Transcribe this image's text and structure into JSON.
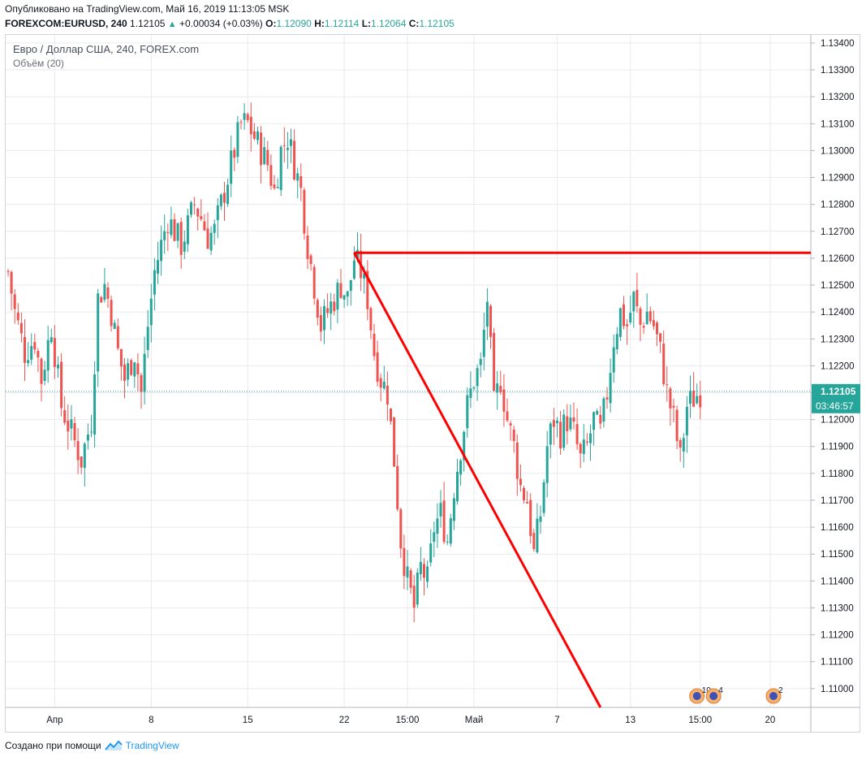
{
  "header": {
    "published": "Опубликовано на TradingView.com, Май 16, 2019 11:13:05 MSK",
    "symbol": "FOREXCOM:EURUSD, 240",
    "price": "1.12105",
    "change": "+0.00034 (+0.03%)",
    "o_label": "O:",
    "o": "1.12090",
    "h_label": "H:",
    "h": "1.12114",
    "l_label": "L:",
    "l": "1.12064",
    "c_label": "C:",
    "c": "1.12105"
  },
  "legend": {
    "title": "Евро / Доллар США, 240, FOREX.com",
    "indicator": "Объём (20)"
  },
  "footer": {
    "created_by": "Создано при помощи",
    "brand": "TradingView"
  },
  "colors": {
    "up": "#26a69a",
    "down": "#ef5350",
    "drawing": "#ff0000",
    "last_price_bg": "#26a69a",
    "grid": "#e9eaee"
  },
  "chart_data": {
    "type": "candlestick",
    "ylim": [
      1.1093,
      1.1343
    ],
    "y_ticks": [
      "1.13400",
      "1.13300",
      "1.13200",
      "1.13100",
      "1.13000",
      "1.12900",
      "1.12800",
      "1.12700",
      "1.12600",
      "1.12500",
      "1.12400",
      "1.12300",
      "1.12200",
      "1.12100",
      "1.12000",
      "1.11900",
      "1.11800",
      "1.11700",
      "1.11600",
      "1.11500",
      "1.11400",
      "1.11300",
      "1.11200",
      "1.11100",
      "1.11000"
    ],
    "x_ticks": [
      {
        "label": "Апр",
        "bar": 14
      },
      {
        "label": "8",
        "bar": 43
      },
      {
        "label": "15",
        "bar": 72
      },
      {
        "label": "22",
        "bar": 101
      },
      {
        "label": "15:00",
        "bar": 120
      },
      {
        "label": "Май",
        "bar": 140
      },
      {
        "label": "7",
        "bar": 165
      },
      {
        "label": "13",
        "bar": 187
      },
      {
        "label": "15:00",
        "bar": 208
      },
      {
        "label": "20",
        "bar": 229
      }
    ],
    "bar_count": 232,
    "last_price": "1.12105",
    "countdown": "03:46:57",
    "last_price_value": 1.12105,
    "drawings": [
      {
        "kind": "horizontal_ray",
        "price": 1.1262,
        "from_bar": 104
      },
      {
        "kind": "trend_line",
        "p1": {
          "bar": 104,
          "price": 1.1262
        },
        "p2": {
          "bar": 178,
          "price": 1.1093
        }
      }
    ],
    "events": [
      {
        "bar": 207,
        "count": "10"
      },
      {
        "bar": 212,
        "count": "4"
      },
      {
        "bar": 230,
        "count": "2"
      }
    ],
    "anchors": [
      [
        0,
        1.1255
      ],
      [
        2,
        1.124
      ],
      [
        5,
        1.1225
      ],
      [
        8,
        1.123
      ],
      [
        10,
        1.1215
      ],
      [
        13,
        1.1235
      ],
      [
        16,
        1.1205
      ],
      [
        19,
        1.1195
      ],
      [
        22,
        1.1185
      ],
      [
        25,
        1.12
      ],
      [
        27,
        1.1245
      ],
      [
        29,
        1.125
      ],
      [
        31,
        1.124
      ],
      [
        33,
        1.1225
      ],
      [
        35,
        1.1215
      ],
      [
        38,
        1.1225
      ],
      [
        40,
        1.121
      ],
      [
        42,
        1.1235
      ],
      [
        44,
        1.1255
      ],
      [
        46,
        1.1265
      ],
      [
        48,
        1.1275
      ],
      [
        50,
        1.127
      ],
      [
        52,
        1.1265
      ],
      [
        54,
        1.1272
      ],
      [
        56,
        1.128
      ],
      [
        58,
        1.1275
      ],
      [
        60,
        1.1268
      ],
      [
        62,
        1.127
      ],
      [
        64,
        1.128
      ],
      [
        66,
        1.129
      ],
      [
        68,
        1.13
      ],
      [
        70,
        1.131
      ],
      [
        72,
        1.131
      ],
      [
        74,
        1.1305
      ],
      [
        76,
        1.13
      ],
      [
        78,
        1.1295
      ],
      [
        80,
        1.1285
      ],
      [
        82,
        1.13
      ],
      [
        84,
        1.1305
      ],
      [
        86,
        1.1295
      ],
      [
        88,
        1.1285
      ],
      [
        90,
        1.1265
      ],
      [
        92,
        1.125
      ],
      [
        94,
        1.1235
      ],
      [
        96,
        1.124
      ],
      [
        98,
        1.1245
      ],
      [
        100,
        1.125
      ],
      [
        102,
        1.1245
      ],
      [
        104,
        1.126
      ],
      [
        106,
        1.1255
      ],
      [
        108,
        1.1245
      ],
      [
        110,
        1.1225
      ],
      [
        112,
        1.1215
      ],
      [
        114,
        1.121
      ],
      [
        116,
        1.1185
      ],
      [
        118,
        1.1155
      ],
      [
        120,
        1.114
      ],
      [
        122,
        1.113
      ],
      [
        124,
        1.1145
      ],
      [
        126,
        1.114
      ],
      [
        128,
        1.116
      ],
      [
        130,
        1.1165
      ],
      [
        132,
        1.1155
      ],
      [
        134,
        1.1175
      ],
      [
        136,
        1.119
      ],
      [
        138,
        1.1205
      ],
      [
        140,
        1.1215
      ],
      [
        142,
        1.122
      ],
      [
        144,
        1.1245
      ],
      [
        146,
        1.1205
      ],
      [
        148,
        1.1215
      ],
      [
        150,
        1.12
      ],
      [
        152,
        1.119
      ],
      [
        154,
        1.1175
      ],
      [
        156,
        1.117
      ],
      [
        158,
        1.115
      ],
      [
        160,
        1.1165
      ],
      [
        162,
        1.119
      ],
      [
        164,
        1.12
      ],
      [
        166,
        1.1195
      ],
      [
        168,
        1.12
      ],
      [
        170,
        1.1195
      ],
      [
        172,
        1.1185
      ],
      [
        174,
        1.119
      ],
      [
        176,
        1.12
      ],
      [
        178,
        1.1195
      ],
      [
        180,
        1.121
      ],
      [
        182,
        1.123
      ],
      [
        184,
        1.124
      ],
      [
        186,
        1.1235
      ],
      [
        188,
        1.1245
      ],
      [
        190,
        1.1235
      ],
      [
        192,
        1.124
      ],
      [
        194,
        1.1235
      ],
      [
        196,
        1.1225
      ],
      [
        198,
        1.121
      ],
      [
        200,
        1.12
      ],
      [
        202,
        1.1185
      ],
      [
        204,
        1.1205
      ],
      [
        206,
        1.1208
      ],
      [
        208,
        1.12105
      ]
    ]
  }
}
